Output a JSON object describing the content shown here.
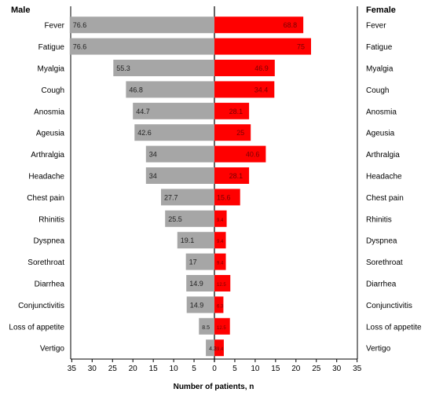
{
  "chart_data": {
    "type": "bar",
    "orientation": "horizontal-butterfly",
    "left_header": "Male",
    "right_header": "Female",
    "xlabel": "Number of patients, n",
    "categories": [
      "Fever",
      "Fatigue",
      "Myalgia",
      "Cough",
      "Anosmia",
      "Ageusia",
      "Arthralgia",
      "Headache",
      "Chest pain",
      "Rhinitis",
      "Dyspnea",
      "Sorethroat",
      "Diarrhea",
      "Conjunctivitis",
      "Loss of appetite",
      "Vertigo"
    ],
    "series": [
      {
        "side": "left",
        "color": "#a6a6a6",
        "values": [
          35.5,
          35.5,
          24.8,
          21.7,
          20.0,
          19.6,
          16.8,
          16.8,
          13.1,
          12.1,
          9.1,
          7.0,
          6.9,
          6.8,
          3.8,
          2.1
        ],
        "labels": [
          "76.6",
          "76.6",
          "55.3",
          "46.8",
          "44.7",
          "42.6",
          "34",
          "34",
          "27.7",
          "25.5",
          "19.1",
          "17",
          "14.9",
          "14.9",
          "8.5",
          "4.3"
        ]
      },
      {
        "side": "right",
        "color": "#ff0000",
        "values": [
          21.8,
          23.7,
          14.8,
          14.7,
          8.5,
          8.9,
          12.6,
          8.5,
          6.3,
          3.0,
          2.8,
          2.8,
          3.9,
          2.2,
          3.8,
          2.3
        ],
        "labels": [
          "68.8",
          "75",
          "46.9",
          "34.4",
          "28.1",
          "25",
          "40.6",
          "28.1",
          "15.6",
          "9.4",
          "9.4",
          "9.4",
          "12.5",
          "6.3",
          "12.5",
          "9.4"
        ]
      }
    ],
    "xlim": [
      -40,
      40
    ],
    "ticks": [
      -35,
      -30,
      -25,
      -20,
      -15,
      -10,
      -5,
      0,
      5,
      10,
      15,
      20,
      25,
      30,
      35
    ],
    "tick_labels": [
      "35",
      "30",
      "25",
      "20",
      "15",
      "10",
      "5",
      "0",
      "5",
      "10",
      "15",
      "20",
      "25",
      "30",
      "35"
    ],
    "grid": false,
    "legend": "none"
  }
}
